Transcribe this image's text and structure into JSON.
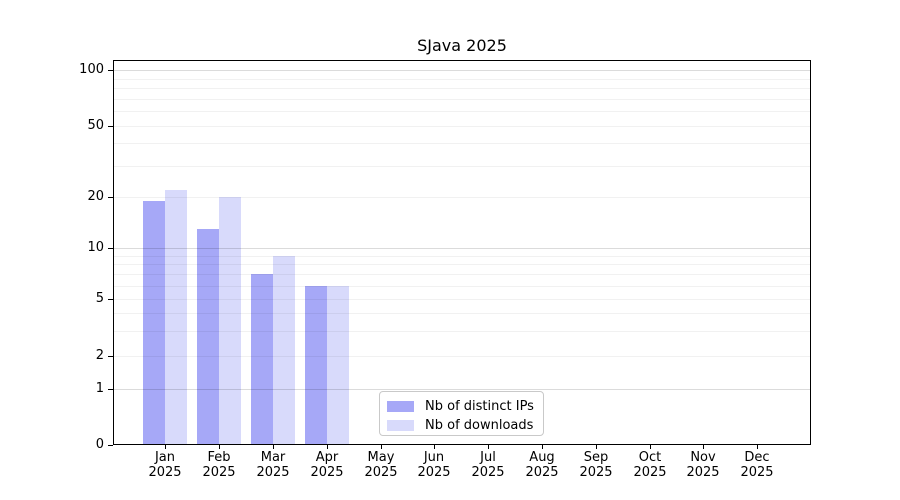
{
  "title": "SJava 2025",
  "chart_data": {
    "type": "bar",
    "title": "SJava 2025",
    "categories": [
      "Jan",
      "Feb",
      "Mar",
      "Apr",
      "May",
      "Jun",
      "Jul",
      "Aug",
      "Sep",
      "Oct",
      "Nov",
      "Dec"
    ],
    "x_tick_year": "2025",
    "series": [
      {
        "name": "Nb of distinct IPs",
        "color": "#a6a8f7",
        "values": [
          19,
          13,
          7,
          6,
          0,
          0,
          0,
          0,
          0,
          0,
          0,
          0
        ]
      },
      {
        "name": "Nb of downloads",
        "color": "#d8dafb",
        "values": [
          22,
          20,
          9,
          6,
          0,
          0,
          0,
          0,
          0,
          0,
          0,
          0
        ]
      }
    ],
    "y_ticks": [
      0,
      1,
      2,
      5,
      10,
      20,
      50,
      100
    ],
    "ylim": [
      0,
      100
    ],
    "yscale": "symlog",
    "grid": "horizontal only, log minor (2-9, 20-90) light + major (1, 10, 100) darker",
    "legend_position": "inside plot, lower center-left",
    "xlabel": "",
    "ylabel": ""
  }
}
